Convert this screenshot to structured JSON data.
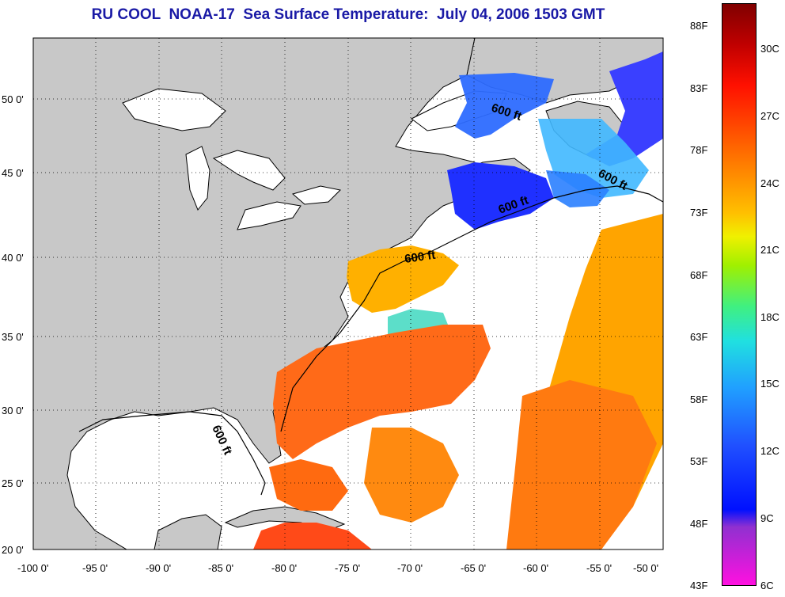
{
  "title": "RU COOL  NOAA-17  Sea Surface Temperature:  July 04, 2006 1503 GMT",
  "lon_labels": [
    "-100 0'",
    "-95 0'",
    "-90 0'",
    "-85 0'",
    "-80 0'",
    "-75 0'",
    "-70 0'",
    "-65 0'",
    "-60 0'",
    "-55 0'",
    "-50 0'"
  ],
  "lat_labels": [
    "50 0'",
    "45 0'",
    "40 0'",
    "35 0'",
    "30 0'",
    "25 0'",
    "20 0'"
  ],
  "contour_labels": [
    "600 ft",
    "600 ft",
    "600 ft",
    "600 ft",
    "600 ft"
  ],
  "colorbar": {
    "fahrenheit": [
      "88F",
      "83F",
      "78F",
      "73F",
      "68F",
      "63F",
      "58F",
      "53F",
      "48F",
      "43F"
    ],
    "celsius": [
      "30C",
      "27C",
      "24C",
      "21C",
      "18C",
      "15C",
      "12C",
      "9C",
      "6C"
    ]
  },
  "colors": {
    "land": "#c8c8c8",
    "ocean": "#ffffff",
    "warm": "#ff5a10",
    "orange": "#ffa000",
    "cool": "#2040ff",
    "title": "#1a1aa6"
  }
}
